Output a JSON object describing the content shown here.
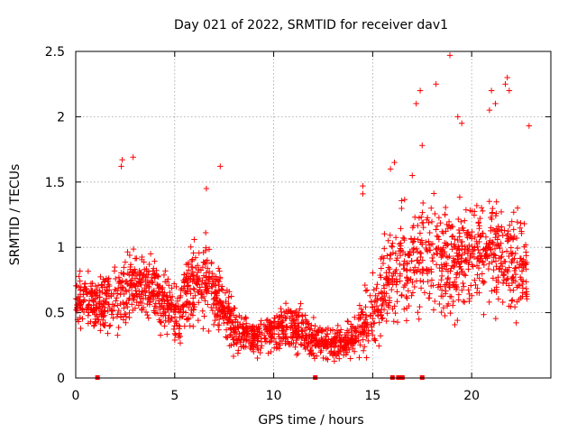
{
  "chart_data": {
    "type": "scatter",
    "title": "Day 021 of 2022, SRMTID for receiver dav1",
    "xlabel": "GPS time / hours",
    "ylabel": "SRMTID / TECUs",
    "xlim": [
      0,
      24
    ],
    "ylim": [
      0,
      2.5
    ],
    "x_ticks": [
      0,
      5,
      10,
      15,
      20
    ],
    "x_tick_labels": [
      "0",
      "5",
      "10",
      "15",
      "20"
    ],
    "y_ticks": [
      0,
      0.5,
      1,
      1.5,
      2,
      2.5
    ],
    "y_tick_labels": [
      "0",
      "0.5",
      "1",
      "1.5",
      "2",
      "2.5"
    ],
    "grid": true,
    "marker": "+",
    "color": "#ff0000",
    "series": [
      {
        "name": "SRMTID",
        "envelope": {
          "hours": [
            0,
            1,
            2,
            3,
            4,
            5,
            6,
            7,
            8,
            9,
            10,
            11,
            12,
            13,
            14,
            15,
            16,
            17,
            18,
            19,
            20,
            21,
            22,
            22.8
          ],
          "median": [
            0.62,
            0.55,
            0.62,
            0.72,
            0.65,
            0.5,
            0.75,
            0.68,
            0.38,
            0.32,
            0.36,
            0.38,
            0.3,
            0.26,
            0.3,
            0.5,
            0.8,
            0.9,
            0.95,
            0.85,
            0.95,
            1.0,
            0.9,
            0.8
          ],
          "spread": [
            0.22,
            0.24,
            0.32,
            0.3,
            0.26,
            0.25,
            0.34,
            0.32,
            0.2,
            0.16,
            0.18,
            0.2,
            0.16,
            0.14,
            0.18,
            0.3,
            0.4,
            0.46,
            0.5,
            0.5,
            0.45,
            0.5,
            0.5,
            0.4
          ]
        },
        "highlights": [
          [
            2.3,
            1.62
          ],
          [
            2.35,
            1.67
          ],
          [
            2.9,
            1.69
          ],
          [
            6.6,
            1.45
          ],
          [
            7.3,
            1.62
          ],
          [
            14.5,
            1.47
          ],
          [
            14.5,
            1.41
          ],
          [
            15.9,
            1.6
          ],
          [
            16.1,
            1.65
          ],
          [
            17.0,
            1.55
          ],
          [
            17.5,
            1.78
          ],
          [
            17.2,
            2.1
          ],
          [
            17.4,
            2.2
          ],
          [
            18.2,
            2.25
          ],
          [
            18.9,
            2.47
          ],
          [
            19.3,
            2.0
          ],
          [
            19.5,
            1.95
          ],
          [
            20.9,
            2.05
          ],
          [
            21.0,
            2.2
          ],
          [
            21.2,
            2.1
          ],
          [
            21.8,
            2.3
          ],
          [
            21.7,
            2.25
          ],
          [
            21.9,
            2.2
          ],
          [
            22.9,
            1.93
          ]
        ],
        "zero_values_at_hours": [
          1.1,
          12.1,
          16.0,
          16.3,
          16.5,
          17.5
        ]
      }
    ]
  }
}
